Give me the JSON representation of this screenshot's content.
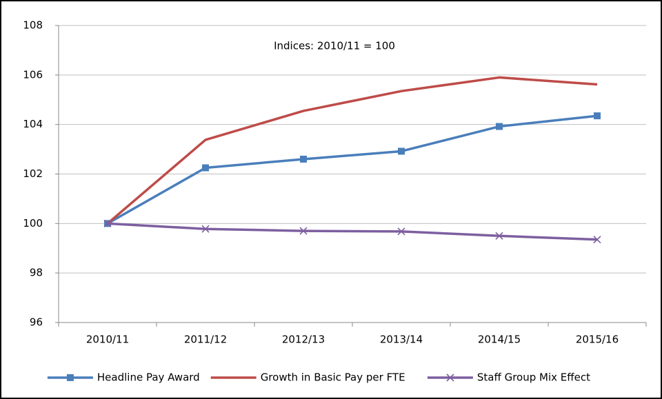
{
  "chart_data": {
    "type": "line",
    "annotation": "Indices: 2010/11 = 100",
    "categories": [
      "2010/11",
      "2011/12",
      "2012/13",
      "2013/14",
      "2014/15",
      "2015/16"
    ],
    "series": [
      {
        "name": "Headline Pay Award",
        "color": "#4a7ebb",
        "marker": "square",
        "values": [
          100,
          102.25,
          102.6,
          102.92,
          103.92,
          104.35
        ]
      },
      {
        "name": "Growth in Basic Pay per FTE",
        "color": "#be4b48",
        "values": [
          100,
          103.38,
          104.55,
          105.35,
          105.9,
          105.62
        ]
      },
      {
        "name": "Staff Group Mix Effect",
        "color": "#7d5fa0",
        "marker": "x",
        "values": [
          100,
          99.78,
          99.7,
          99.68,
          99.5,
          99.35
        ]
      }
    ],
    "ylim": [
      96,
      108
    ],
    "yticks": [
      96,
      98,
      100,
      102,
      104,
      106,
      108
    ],
    "grid": true,
    "legend": "bottom"
  }
}
